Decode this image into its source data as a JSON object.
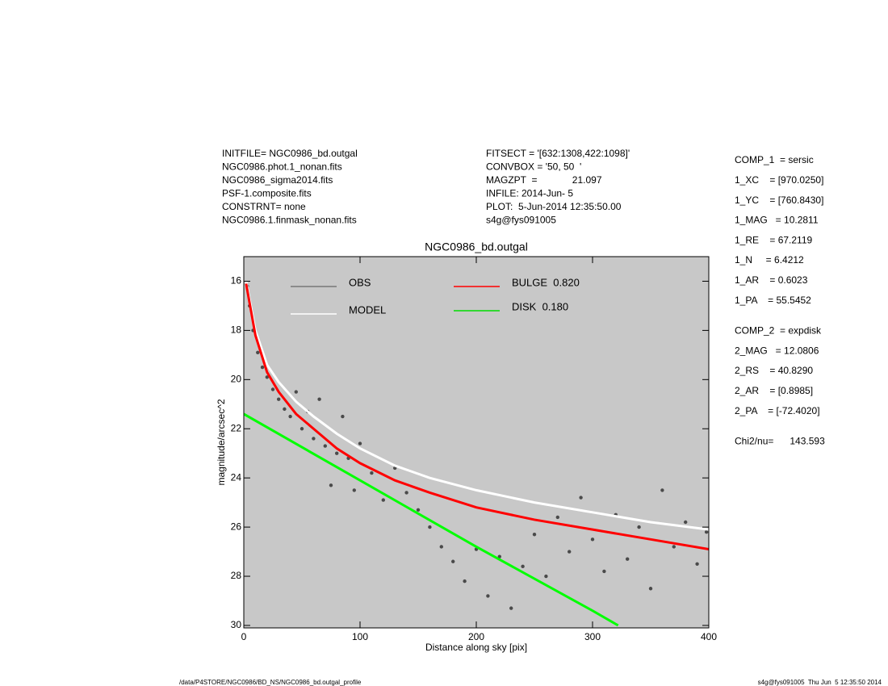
{
  "header_left": [
    "INITFILE= NGC0986_bd.outgal",
    "NGC0986.phot.1_nonan.fits",
    "NGC0986_sigma2014.fits",
    "PSF-1.composite.fits",
    "CONSTRNT= none",
    "NGC0986.1.finmask_nonan.fits"
  ],
  "header_mid": [
    "FITSECT = '[632:1308,422:1098]'",
    "CONVBOX = '50, 50  '",
    "MAGZPT  =             21.097",
    "INFILE: 2014-Jun- 5",
    "PLOT:  5-Jun-2014 12:35:50.00",
    "s4g@fys091005"
  ],
  "params": [
    [
      "COMP_1  = sersic",
      "1_XC    = [970.0250]",
      "1_YC    = [760.8430]",
      "1_MAG   = 10.2811",
      "1_RE    = 67.2119",
      "1_N     = 6.4212",
      "1_AR    = 0.6023",
      "1_PA    = 55.5452"
    ],
    [
      "COMP_2  = expdisk",
      "2_MAG   = 12.0806",
      "2_RS    = 40.8290",
      "2_AR    = [0.8985]",
      "2_PA    = [-72.4020]"
    ],
    [
      "Chi2/nu=      143.593"
    ]
  ],
  "footer_left": "/data/P4STORE/NGC0986/BD_NS/NGC0986_bd.outgal_profile",
  "footer_right": "s4g@fys091005  Thu Jun  5 12:35:50 2014",
  "chart_data": {
    "type": "scatter",
    "title": "NGC0986_bd.outgal",
    "x_label": "Distance along sky [pix]",
    "y_label": "magnitude/arcsec^2",
    "xlim": [
      0,
      400
    ],
    "xticks": [
      0,
      100,
      200,
      300,
      400
    ],
    "ylim": [
      30.1,
      15
    ],
    "yticks": [
      16,
      18,
      20,
      22,
      24,
      26,
      28,
      30
    ],
    "background": "#c8c8c8",
    "series": [
      {
        "name": "OBS",
        "color": "#4a4a4a",
        "legend_color": "#777777",
        "line": false,
        "x": [
          3,
          5,
          8,
          12,
          16,
          20,
          25,
          30,
          35,
          40,
          45,
          50,
          55,
          60,
          65,
          70,
          75,
          80,
          85,
          90,
          95,
          100,
          110,
          120,
          130,
          140,
          150,
          160,
          170,
          180,
          190,
          200,
          210,
          220,
          230,
          240,
          250,
          260,
          270,
          280,
          290,
          300,
          310,
          320,
          330,
          340,
          350,
          360,
          370,
          380,
          390,
          398
        ],
        "values": [
          16.2,
          17.0,
          18.0,
          18.9,
          19.5,
          19.9,
          20.4,
          20.8,
          21.2,
          21.5,
          20.5,
          22.0,
          21.3,
          22.4,
          20.8,
          22.7,
          24.3,
          23.0,
          21.5,
          23.2,
          24.5,
          22.6,
          23.8,
          24.9,
          23.6,
          24.6,
          25.3,
          26.0,
          26.8,
          27.4,
          28.2,
          26.9,
          28.8,
          27.2,
          29.3,
          27.6,
          26.3,
          28.0,
          25.6,
          27.0,
          24.8,
          26.5,
          27.8,
          25.5,
          27.3,
          26.0,
          28.5,
          24.5,
          26.8,
          25.8,
          27.5,
          26.2
        ]
      },
      {
        "name": "MODEL",
        "color": "#ffffff",
        "legend_color": "#ffffff",
        "line": true,
        "x": [
          2,
          10,
          20,
          30,
          45,
          60,
          80,
          100,
          130,
          160,
          200,
          250,
          300,
          350,
          400
        ],
        "values": [
          16.0,
          18.0,
          19.4,
          20.1,
          20.9,
          21.5,
          22.2,
          22.8,
          23.5,
          24.0,
          24.5,
          25.0,
          25.4,
          25.8,
          26.1
        ]
      },
      {
        "name": "BULGE  0.820",
        "color": "#ff0000",
        "legend_color": "#ff0000",
        "line": true,
        "x": [
          2,
          10,
          20,
          30,
          45,
          60,
          80,
          100,
          130,
          160,
          200,
          250,
          300,
          350,
          400
        ],
        "values": [
          16.1,
          18.2,
          19.7,
          20.5,
          21.4,
          22.0,
          22.8,
          23.4,
          24.1,
          24.6,
          25.2,
          25.7,
          26.1,
          26.5,
          26.9
        ]
      },
      {
        "name": "DISK  0.180",
        "color": "#00ff00",
        "legend_color": "#00dd00",
        "line": true,
        "x": [
          0,
          100,
          200,
          300,
          322
        ],
        "values": [
          21.4,
          24.1,
          26.8,
          29.4,
          30.0
        ]
      }
    ]
  }
}
